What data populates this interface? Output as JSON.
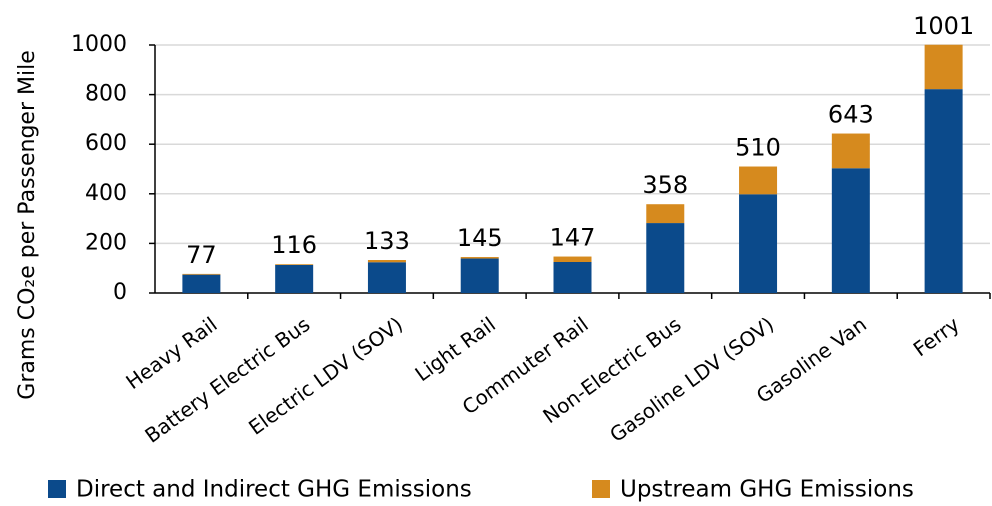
{
  "chart_data": {
    "type": "stacked_bar",
    "ylabel": "Grams CO₂e per Passenger Mile",
    "categories": [
      "Heavy Rail",
      "Battery Electric Bus",
      "Electric LDV (SOV)",
      "Light Rail",
      "Commuter Rail",
      "Non-Electric Bus",
      "Gasoline LDV (SOV)",
      "Gasoline Van",
      "Ferry"
    ],
    "series": [
      {
        "name": "Direct and Indirect GHG Emissions",
        "color": "#0b4a8b",
        "values": [
          74,
          113,
          124,
          139,
          125,
          282,
          398,
          503,
          822
        ]
      },
      {
        "name": "Upstream GHG Emissions",
        "color": "#d68a1e",
        "values": [
          3,
          3,
          9,
          6,
          22,
          76,
          112,
          140,
          179
        ]
      }
    ],
    "totals": [
      77,
      116,
      133,
      145,
      147,
      358,
      510,
      643,
      1001
    ],
    "ylim": [
      0,
      1000
    ],
    "yticks": [
      0,
      200,
      400,
      600,
      800,
      1000
    ],
    "grid": true,
    "legend": "bottom"
  }
}
